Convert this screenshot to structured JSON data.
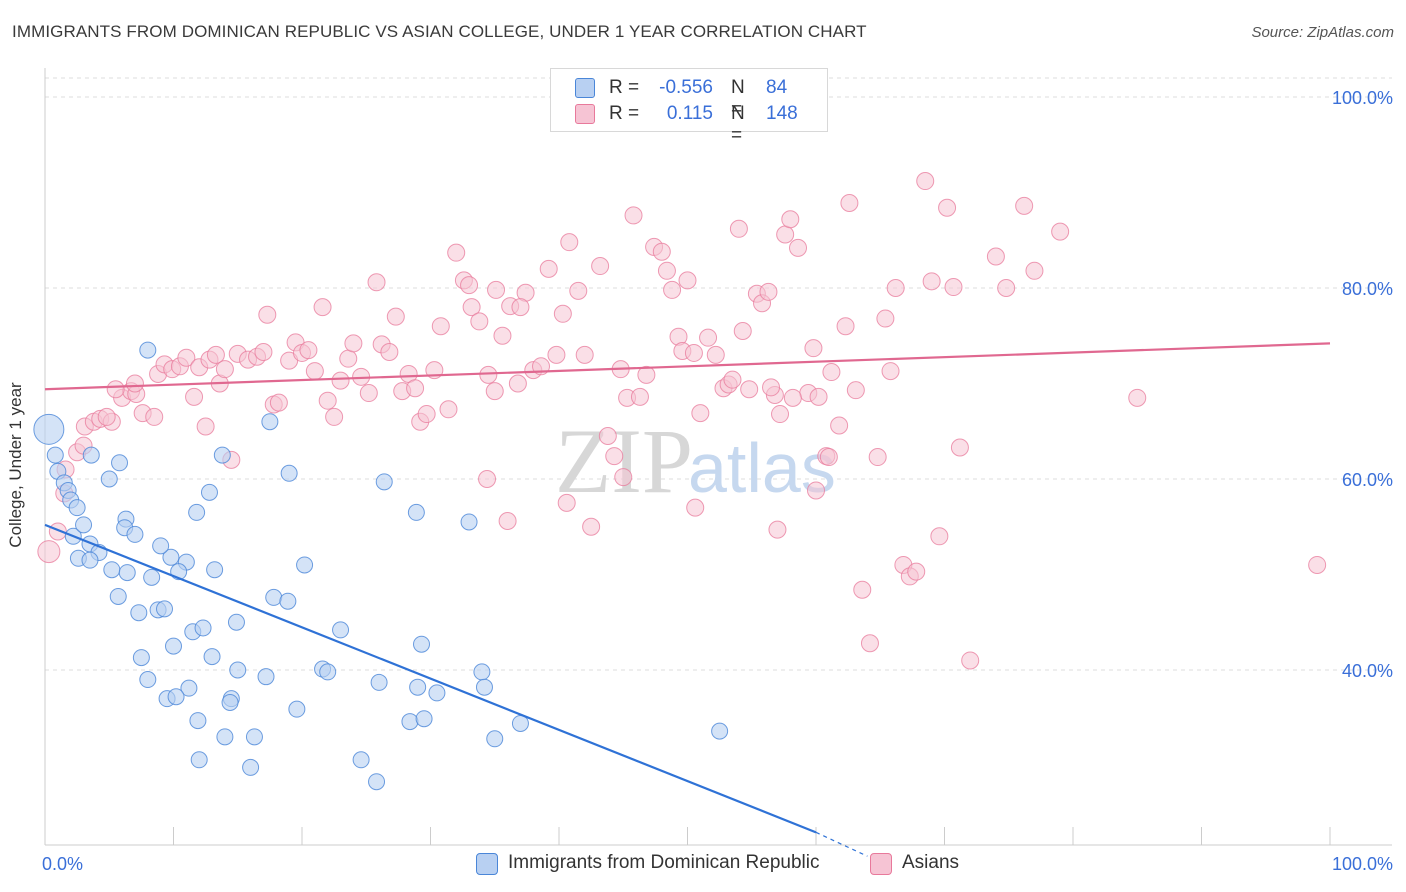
{
  "header": {
    "title": "IMMIGRANTS FROM DOMINICAN REPUBLIC VS ASIAN COLLEGE, UNDER 1 YEAR CORRELATION CHART",
    "source": "Source: ZipAtlas.com"
  },
  "colors": {
    "blue": "#4a86d8",
    "blue_fill": "#b8d0f2",
    "blue_line": "#2f72d6",
    "pink": "#e8799b",
    "pink_fill": "#f6c4d4",
    "pink_line": "#e06890",
    "axis_label": "#3a6fd8",
    "grid": "#dedede"
  },
  "legend_top": {
    "rows": [
      {
        "r_label": "R =",
        "r_value": "-0.556",
        "n_label": "N =",
        "n_value": "84"
      },
      {
        "r_label": "R =",
        "r_value": "0.115",
        "n_label": "N =",
        "n_value": "148"
      }
    ]
  },
  "legend_bottom": {
    "items": [
      "Immigrants from Dominican Republic",
      "Asians"
    ]
  },
  "watermark": {
    "zip": "ZIP",
    "atlas": "atlas"
  },
  "chart_data": {
    "type": "scatter",
    "title": "IMMIGRANTS FROM DOMINICAN REPUBLIC VS ASIAN COLLEGE, UNDER 1 YEAR CORRELATION CHART",
    "xlabel": "",
    "ylabel": "College, Under 1 year",
    "xlim": [
      0,
      100
    ],
    "ylim": [
      20,
      102
    ],
    "x_tick_labels": [
      "0.0%",
      "100.0%"
    ],
    "y_ticks": [
      40,
      60,
      80,
      100
    ],
    "y_tick_labels": [
      "40.0%",
      "60.0%",
      "80.0%",
      "100.0%"
    ],
    "grid": true,
    "legend_position": "top-center",
    "series": [
      {
        "name": "Immigrants from Dominican Republic",
        "color": "#4a86d8",
        "R": -0.556,
        "N": 84,
        "trend": {
          "x": [
            0,
            60
          ],
          "y": [
            55.2,
            23.0
          ],
          "dashed_extension_x": [
            60,
            64
          ],
          "dashed_extension_y": [
            23.0,
            20.5
          ]
        },
        "points": [
          [
            0.3,
            65.2
          ],
          [
            0.8,
            62.5
          ],
          [
            1.0,
            60.8
          ],
          [
            1.5,
            59.6
          ],
          [
            1.8,
            58.8
          ],
          [
            2.0,
            57.8
          ],
          [
            2.5,
            57.0
          ],
          [
            2.2,
            54.0
          ],
          [
            3.0,
            55.2
          ],
          [
            3.5,
            53.2
          ],
          [
            4.2,
            52.3
          ],
          [
            2.6,
            51.7
          ],
          [
            3.5,
            51.5
          ],
          [
            5.2,
            50.5
          ],
          [
            6.4,
            50.2
          ],
          [
            8.3,
            49.7
          ],
          [
            9.8,
            51.8
          ],
          [
            11.0,
            51.3
          ],
          [
            10.4,
            50.3
          ],
          [
            13.2,
            50.5
          ],
          [
            5.7,
            47.7
          ],
          [
            7.3,
            46.0
          ],
          [
            8.8,
            46.3
          ],
          [
            9.3,
            46.4
          ],
          [
            3.6,
            62.5
          ],
          [
            5.0,
            60.0
          ],
          [
            5.8,
            61.7
          ],
          [
            6.3,
            55.8
          ],
          [
            6.2,
            54.9
          ],
          [
            7.0,
            54.2
          ],
          [
            9.0,
            53.0
          ],
          [
            11.8,
            56.5
          ],
          [
            12.8,
            58.6
          ],
          [
            13.8,
            62.5
          ],
          [
            8.0,
            73.5
          ],
          [
            17.5,
            66.0
          ],
          [
            19.0,
            60.6
          ],
          [
            20.2,
            51.0
          ],
          [
            17.8,
            47.6
          ],
          [
            18.9,
            47.2
          ],
          [
            11.5,
            44.0
          ],
          [
            12.3,
            44.4
          ],
          [
            14.9,
            45.0
          ],
          [
            10.0,
            42.5
          ],
          [
            13.0,
            41.4
          ],
          [
            7.5,
            41.3
          ],
          [
            15.0,
            40.0
          ],
          [
            17.2,
            39.3
          ],
          [
            8.0,
            39.0
          ],
          [
            11.2,
            38.1
          ],
          [
            9.5,
            37.0
          ],
          [
            10.2,
            37.2
          ],
          [
            14.5,
            37.0
          ],
          [
            14.4,
            36.6
          ],
          [
            11.9,
            34.7
          ],
          [
            19.6,
            35.9
          ],
          [
            14.0,
            33.0
          ],
          [
            16.3,
            33.0
          ],
          [
            12.0,
            30.6
          ],
          [
            16.0,
            29.8
          ],
          [
            21.6,
            40.1
          ],
          [
            22.0,
            39.8
          ],
          [
            23.0,
            44.2
          ],
          [
            26.0,
            38.7
          ],
          [
            28.4,
            34.6
          ],
          [
            29.5,
            34.9
          ],
          [
            24.6,
            30.6
          ],
          [
            25.8,
            28.3
          ],
          [
            26.4,
            59.7
          ],
          [
            28.9,
            56.5
          ],
          [
            29.3,
            42.7
          ],
          [
            29.0,
            38.2
          ],
          [
            30.5,
            37.6
          ],
          [
            33.0,
            55.5
          ],
          [
            34.0,
            39.8
          ],
          [
            34.2,
            38.2
          ],
          [
            35.0,
            32.8
          ],
          [
            37.0,
            34.4
          ],
          [
            52.5,
            33.6
          ]
        ]
      },
      {
        "name": "Asians",
        "color": "#e8799b",
        "R": 0.115,
        "N": 148,
        "trend": {
          "x": [
            0,
            100
          ],
          "y": [
            69.4,
            74.2
          ]
        },
        "points": [
          [
            0.3,
            52.4
          ],
          [
            1.0,
            54.5
          ],
          [
            1.5,
            58.5
          ],
          [
            1.6,
            61.0
          ],
          [
            2.5,
            62.8
          ],
          [
            3.0,
            63.5
          ],
          [
            3.1,
            65.5
          ],
          [
            3.8,
            66.0
          ],
          [
            4.3,
            66.3
          ],
          [
            5.2,
            66.0
          ],
          [
            6.0,
            68.5
          ],
          [
            6.7,
            69.2
          ],
          [
            7.1,
            68.9
          ],
          [
            7.6,
            66.9
          ],
          [
            8.5,
            66.5
          ],
          [
            5.5,
            69.4
          ],
          [
            4.8,
            66.5
          ],
          [
            7.0,
            70.0
          ],
          [
            8.8,
            71.0
          ],
          [
            9.3,
            72.0
          ],
          [
            9.9,
            71.5
          ],
          [
            10.5,
            71.8
          ],
          [
            11.0,
            72.7
          ],
          [
            11.6,
            68.6
          ],
          [
            12.0,
            71.7
          ],
          [
            12.5,
            65.5
          ],
          [
            12.8,
            72.5
          ],
          [
            13.3,
            73.0
          ],
          [
            13.6,
            70.0
          ],
          [
            14.0,
            71.5
          ],
          [
            14.5,
            62.0
          ],
          [
            15.0,
            73.1
          ],
          [
            15.8,
            72.5
          ],
          [
            16.5,
            72.8
          ],
          [
            17.0,
            73.3
          ],
          [
            17.3,
            77.2
          ],
          [
            17.8,
            67.8
          ],
          [
            18.2,
            68.0
          ],
          [
            19.0,
            72.4
          ],
          [
            19.5,
            74.3
          ],
          [
            20.0,
            73.2
          ],
          [
            20.5,
            73.5
          ],
          [
            21.0,
            71.3
          ],
          [
            21.6,
            78.0
          ],
          [
            22.0,
            68.2
          ],
          [
            22.5,
            66.5
          ],
          [
            23.0,
            70.3
          ],
          [
            23.6,
            72.6
          ],
          [
            24.0,
            74.2
          ],
          [
            24.6,
            70.7
          ],
          [
            25.2,
            69.0
          ],
          [
            25.8,
            80.6
          ],
          [
            26.2,
            74.1
          ],
          [
            26.8,
            73.3
          ],
          [
            27.3,
            77.0
          ],
          [
            27.8,
            69.2
          ],
          [
            28.3,
            71.0
          ],
          [
            28.8,
            69.5
          ],
          [
            29.2,
            66.0
          ],
          [
            29.7,
            66.8
          ],
          [
            30.3,
            71.4
          ],
          [
            30.8,
            76.0
          ],
          [
            31.4,
            67.3
          ],
          [
            32.0,
            83.7
          ],
          [
            32.6,
            80.8
          ],
          [
            33.2,
            78.0
          ],
          [
            33.8,
            76.5
          ],
          [
            34.5,
            70.9
          ],
          [
            35.1,
            79.8
          ],
          [
            35.6,
            75.0
          ],
          [
            36.2,
            78.1
          ],
          [
            36.8,
            70.0
          ],
          [
            37.4,
            79.5
          ],
          [
            38.0,
            71.4
          ],
          [
            38.6,
            71.8
          ],
          [
            39.2,
            82.0
          ],
          [
            39.8,
            73.0
          ],
          [
            40.3,
            77.3
          ],
          [
            40.8,
            84.8
          ],
          [
            41.5,
            79.7
          ],
          [
            42.0,
            73.0
          ],
          [
            42.5,
            55.0
          ],
          [
            43.2,
            82.3
          ],
          [
            43.8,
            64.5
          ],
          [
            44.3,
            62.4
          ],
          [
            44.8,
            71.5
          ],
          [
            45.3,
            68.5
          ],
          [
            45.8,
            87.6
          ],
          [
            46.3,
            68.6
          ],
          [
            46.8,
            70.9
          ],
          [
            47.4,
            84.3
          ],
          [
            48.0,
            83.8
          ],
          [
            48.4,
            81.8
          ],
          [
            48.8,
            79.8
          ],
          [
            49.3,
            74.9
          ],
          [
            49.6,
            73.4
          ],
          [
            50.0,
            80.8
          ],
          [
            50.5,
            73.2
          ],
          [
            51.0,
            66.9
          ],
          [
            51.6,
            74.8
          ],
          [
            52.2,
            73.0
          ],
          [
            52.8,
            69.5
          ],
          [
            53.2,
            69.9
          ],
          [
            53.5,
            70.4
          ],
          [
            54.0,
            86.2
          ],
          [
            54.3,
            75.5
          ],
          [
            54.8,
            69.4
          ],
          [
            55.4,
            79.4
          ],
          [
            55.8,
            78.4
          ],
          [
            56.3,
            79.6
          ],
          [
            56.8,
            68.8
          ],
          [
            57.2,
            66.8
          ],
          [
            57.6,
            85.6
          ],
          [
            58.0,
            87.2
          ],
          [
            58.6,
            84.2
          ],
          [
            59.4,
            69.0
          ],
          [
            59.8,
            73.7
          ],
          [
            60.2,
            68.6
          ],
          [
            60.8,
            62.4
          ],
          [
            61.2,
            71.2
          ],
          [
            61.8,
            65.6
          ],
          [
            62.3,
            76.0
          ],
          [
            62.6,
            88.9
          ],
          [
            63.1,
            69.3
          ],
          [
            63.6,
            48.4
          ],
          [
            64.2,
            42.8
          ],
          [
            64.8,
            62.3
          ],
          [
            65.4,
            76.8
          ],
          [
            65.8,
            71.3
          ],
          [
            66.2,
            80.0
          ],
          [
            66.8,
            51.0
          ],
          [
            67.3,
            49.8
          ],
          [
            67.8,
            50.3
          ],
          [
            68.5,
            91.2
          ],
          [
            69.0,
            80.7
          ],
          [
            69.6,
            54.0
          ],
          [
            70.2,
            88.4
          ],
          [
            70.7,
            80.1
          ],
          [
            71.2,
            63.3
          ],
          [
            72.0,
            41.0
          ],
          [
            74.0,
            83.3
          ],
          [
            74.8,
            80.0
          ],
          [
            76.2,
            88.6
          ],
          [
            77.0,
            81.8
          ],
          [
            79.0,
            85.9
          ],
          [
            85.0,
            68.5
          ],
          [
            56.5,
            69.6
          ],
          [
            37.0,
            78.0
          ],
          [
            58.2,
            68.5
          ],
          [
            61.0,
            62.3
          ],
          [
            35.0,
            69.2
          ],
          [
            33.0,
            80.3
          ],
          [
            40.6,
            57.5
          ],
          [
            45.0,
            60.2
          ],
          [
            50.6,
            57.0
          ],
          [
            57.0,
            54.7
          ],
          [
            60.0,
            58.8
          ],
          [
            36.0,
            55.6
          ],
          [
            34.4,
            60.0
          ],
          [
            99.0,
            51.0
          ]
        ]
      }
    ]
  }
}
